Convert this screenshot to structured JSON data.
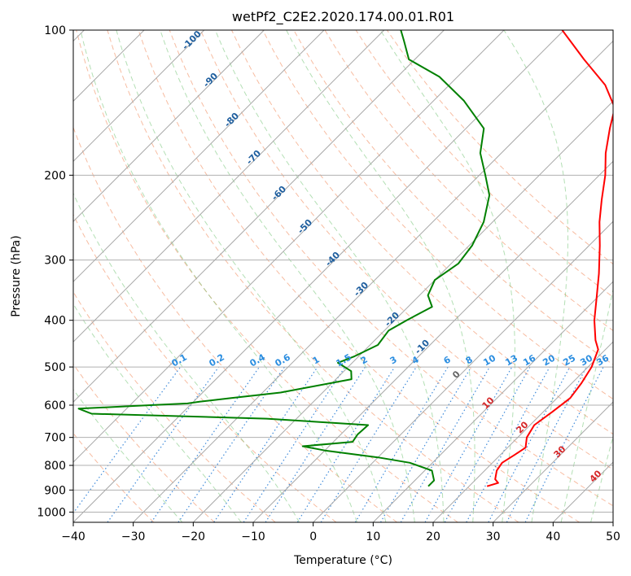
{
  "chart_data": {
    "type": "line",
    "diagram": "skew-T log-P",
    "title": "wetPf2_C2E2.2020.174.00.01.R01",
    "xlabel": "Temperature (°C)",
    "ylabel": "Pressure (hPa)",
    "xlim": [
      -40,
      50
    ],
    "ylim": [
      1050,
      100
    ],
    "y_scale": "log",
    "grid": true,
    "x_ticks": [
      "−40",
      "−30",
      "−20",
      "−10",
      "0",
      "10",
      "20",
      "30",
      "40",
      "50"
    ],
    "y_ticks": [
      "100",
      "200",
      "300",
      "400",
      "500",
      "600",
      "700",
      "800",
      "900",
      "1000"
    ],
    "series": [
      {
        "role": "temperature",
        "color": "#ff0000",
        "points": [
          [
            884,
            23.0
          ],
          [
            870,
            24.3
          ],
          [
            855,
            23.2
          ],
          [
            820,
            22.0
          ],
          [
            790,
            21.6
          ],
          [
            760,
            22.4
          ],
          [
            735,
            23.0
          ],
          [
            700,
            21.5
          ],
          [
            660,
            20.7
          ],
          [
            620,
            21.5
          ],
          [
            580,
            22.2
          ],
          [
            540,
            21.6
          ],
          [
            500,
            20.6
          ],
          [
            460,
            18.8
          ],
          [
            440,
            16.8
          ],
          [
            400,
            13.3
          ],
          [
            360,
            10.0
          ],
          [
            320,
            6.3
          ],
          [
            280,
            1.8
          ],
          [
            250,
            -2.2
          ],
          [
            225,
            -5.5
          ],
          [
            200,
            -9.0
          ],
          [
            180,
            -12.6
          ],
          [
            160,
            -16.0
          ],
          [
            145,
            -18.6
          ],
          [
            130,
            -24.0
          ],
          [
            115,
            -31.8
          ],
          [
            100,
            -40.3
          ]
        ]
      },
      {
        "role": "dewpoint",
        "color": "#008000",
        "points": [
          [
            884,
            13.2
          ],
          [
            860,
            13.2
          ],
          [
            820,
            11.2
          ],
          [
            790,
            6.2
          ],
          [
            770,
            0.0
          ],
          [
            745,
            -10.0
          ],
          [
            730,
            -14.4
          ],
          [
            715,
            -6.8
          ],
          [
            690,
            -7.2
          ],
          [
            660,
            -7.0
          ],
          [
            640,
            -25.0
          ],
          [
            625,
            -55.0
          ],
          [
            610,
            -58.0
          ],
          [
            602,
            -49.0
          ],
          [
            595,
            -40.7
          ],
          [
            590,
            -39.0
          ],
          [
            580,
            -34.3
          ],
          [
            565,
            -27.0
          ],
          [
            550,
            -23.0
          ],
          [
            530,
            -17.4
          ],
          [
            510,
            -18.8
          ],
          [
            490,
            -22.4
          ],
          [
            475,
            -20.7
          ],
          [
            450,
            -18.7
          ],
          [
            420,
            -19.3
          ],
          [
            400,
            -18.0
          ],
          [
            375,
            -16.0
          ],
          [
            355,
            -18.6
          ],
          [
            330,
            -20.0
          ],
          [
            305,
            -18.8
          ],
          [
            280,
            -19.5
          ],
          [
            250,
            -21.5
          ],
          [
            220,
            -25.0
          ],
          [
            200,
            -29.0
          ],
          [
            180,
            -33.5
          ],
          [
            160,
            -37.0
          ],
          [
            140,
            -45.0
          ],
          [
            125,
            -53.0
          ],
          [
            115,
            -61.0
          ],
          [
            105,
            -65.0
          ],
          [
            100,
            -67.2
          ]
        ]
      }
    ],
    "dry_adiabats_c": [
      -30,
      -20,
      -10,
      0,
      10,
      20,
      30,
      40,
      50,
      60,
      70,
      80,
      90,
      100,
      110,
      120
    ],
    "moist_adiabats_c": [
      -25,
      -15,
      -5,
      5,
      10,
      15,
      20,
      25,
      30,
      35,
      40,
      45
    ],
    "moist_adiabat_labels": [
      "-100",
      "-90",
      "-80",
      "-70",
      "-60",
      "-50",
      "-40",
      "-30",
      "-20",
      "-10",
      "0",
      "10",
      "20",
      "30",
      "40"
    ],
    "mixing_ratio_labels": [
      "0.1",
      "0.2",
      "0.4",
      "0.6",
      "1",
      "1.5",
      "2",
      "3",
      "4",
      "6",
      "8",
      "10",
      "13",
      "16",
      "20",
      "25",
      "30",
      "36"
    ]
  }
}
